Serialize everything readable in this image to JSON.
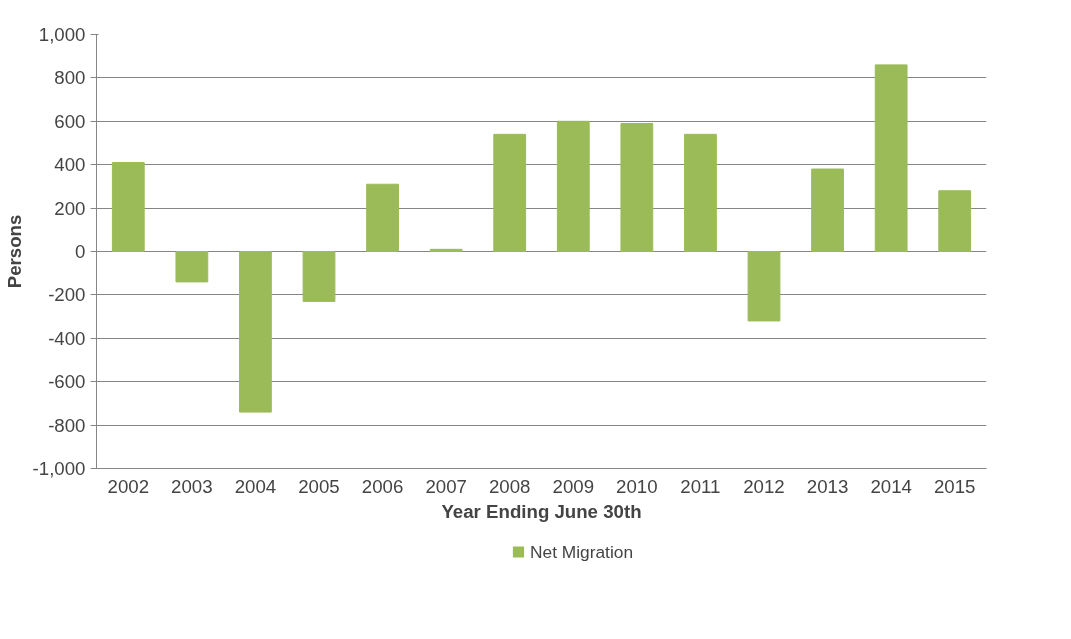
{
  "chart_data": {
    "type": "bar",
    "xlabel": "Year Ending June 30th",
    "ylabel": "Persons",
    "categories": [
      "2002",
      "2003",
      "2004",
      "2005",
      "2006",
      "2007",
      "2008",
      "2009",
      "2010",
      "2011",
      "2012",
      "2013",
      "2014",
      "2015"
    ],
    "series": [
      {
        "name": "Net Migration",
        "color": "#9bbb59",
        "values": [
          410,
          -140,
          -740,
          -230,
          310,
          10,
          540,
          600,
          590,
          540,
          -320,
          380,
          860,
          280
        ]
      }
    ],
    "ylim": [
      -1000,
      1000
    ],
    "yticks": [
      {
        "value": -1000,
        "label": "-1,000"
      },
      -800,
      -600,
      -400,
      -200,
      0,
      200,
      400,
      600,
      800,
      {
        "value": 1000,
        "label": "1,000"
      }
    ],
    "grid": "y",
    "legend": "bottom"
  }
}
